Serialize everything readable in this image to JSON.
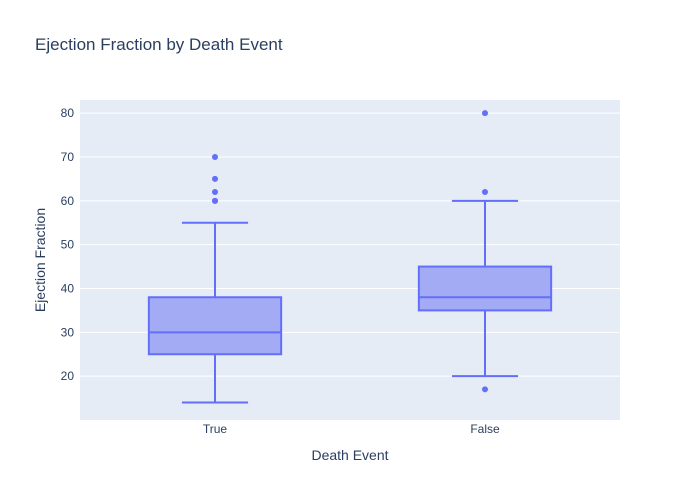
{
  "chart_data": {
    "type": "box",
    "title": "Ejection Fraction by Death Event",
    "xlabel": "Death Event",
    "ylabel": "Ejection Fraction",
    "categories": [
      "True",
      "False"
    ],
    "ylim": [
      10,
      83
    ],
    "yticks": [
      20,
      30,
      40,
      50,
      60,
      70,
      80
    ],
    "grid": true,
    "boxes": [
      {
        "category": "True",
        "min": 14,
        "q1": 25,
        "median": 30,
        "q3": 38,
        "max": 55,
        "outliers": [
          60,
          60,
          62,
          65,
          70
        ]
      },
      {
        "category": "False",
        "min": 20,
        "q1": 35,
        "median": 38,
        "q3": 45,
        "max": 60,
        "outliers": [
          17,
          62,
          80
        ]
      }
    ],
    "colors": {
      "plot_bg": "#e5ecf6",
      "grid": "#ffffff",
      "box_line": "#636efa",
      "box_fill": "#a4abf5",
      "text": "#2a3f5f"
    }
  }
}
